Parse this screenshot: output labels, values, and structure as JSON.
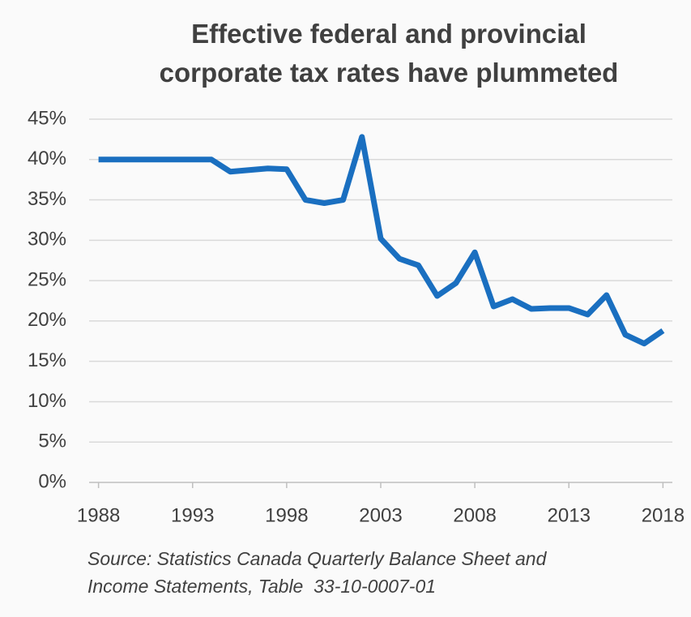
{
  "chart_data": {
    "type": "line",
    "title": [
      "Effective federal and provincial",
      "corporate tax rates have plummeted"
    ],
    "source": [
      "Source: Statistics Canada Quarterly Balance Sheet and",
      "Income Statements, Table  33-10-0007-01"
    ],
    "x": [
      1988,
      1989,
      1990,
      1991,
      1992,
      1993,
      1994,
      1995,
      1996,
      1997,
      1998,
      1999,
      2000,
      2001,
      2002,
      2003,
      2004,
      2005,
      2006,
      2007,
      2008,
      2009,
      2010,
      2011,
      2012,
      2013,
      2014,
      2015,
      2016,
      2017,
      2018
    ],
    "series": [
      {
        "color": "#1a6fc0",
        "values": [
          40,
          40,
          40,
          40,
          40,
          40,
          40,
          38.5,
          38.7,
          38.9,
          38.8,
          35,
          34.6,
          35,
          42.8,
          30.2,
          27.7,
          26.9,
          23.1,
          24.7,
          28.5,
          21.8,
          22.7,
          21.5,
          21.6,
          21.6,
          20.8,
          23.2,
          18.3,
          17.2,
          18.8
        ]
      }
    ],
    "xlim": [
      1987.5,
      2018.5
    ],
    "xticks": [
      1988,
      1993,
      1998,
      2003,
      2008,
      2013,
      2018
    ],
    "ylim": [
      0,
      45
    ],
    "yticks": [
      {
        "value": 0,
        "label": "0%"
      },
      {
        "value": 5,
        "label": "5%"
      },
      {
        "value": 10,
        "label": "10%"
      },
      {
        "value": 15,
        "label": "15%"
      },
      {
        "value": 20,
        "label": "20%"
      },
      {
        "value": 25,
        "label": "25%"
      },
      {
        "value": 30,
        "label": "30%"
      },
      {
        "value": 35,
        "label": "35%"
      },
      {
        "value": 40,
        "label": "40%"
      },
      {
        "value": 45,
        "label": "45%"
      }
    ],
    "grid": true
  }
}
